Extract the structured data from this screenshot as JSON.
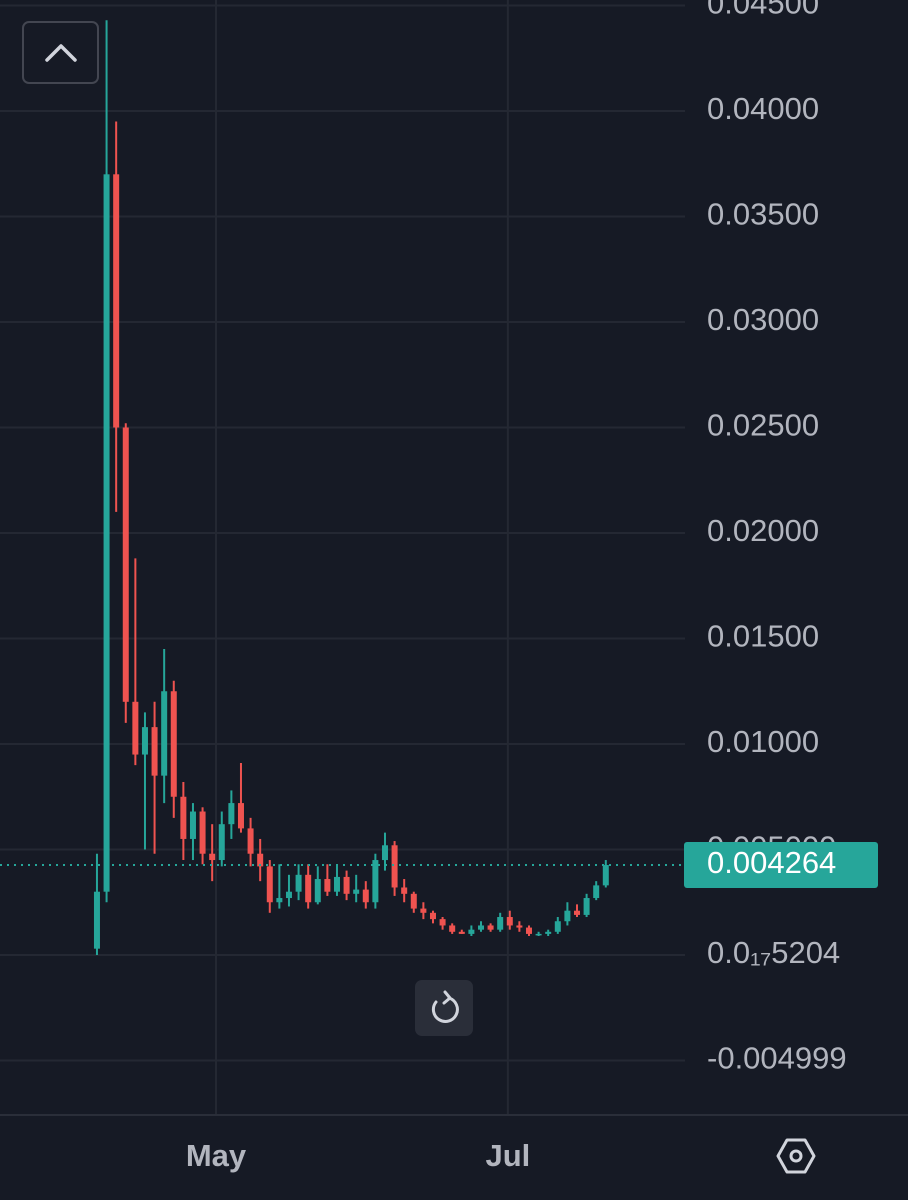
{
  "chart_data": {
    "type": "candlestick",
    "up_color": "#26a69a",
    "down_color": "#ef5350",
    "open": [
      0.0003,
      0.003,
      0.037,
      0.025,
      0.012,
      0.0095,
      0.0108,
      0.0085,
      0.0125,
      0.0075,
      0.0055,
      0.0068,
      0.0048,
      0.0045,
      0.0062,
      0.0072,
      0.006,
      0.0048,
      0.0042,
      0.0025,
      0.0027,
      0.003,
      0.0038,
      0.0025,
      0.0036,
      0.003,
      0.0037,
      0.0029,
      0.0031,
      0.0025,
      0.0045,
      0.0052,
      0.0032,
      0.0029,
      0.0022,
      0.002,
      0.0017,
      0.0014,
      0.0011,
      0.001,
      0.0012,
      0.0014,
      0.0012,
      0.0018,
      0.0014,
      0.0013,
      0.001,
      0.001,
      0.0011,
      0.0016,
      0.0021,
      0.0019,
      0.0027,
      0.0033
    ],
    "high": [
      0.0048,
      0.0443,
      0.0395,
      0.0252,
      0.0188,
      0.0115,
      0.012,
      0.0145,
      0.013,
      0.0082,
      0.0072,
      0.007,
      0.0062,
      0.0068,
      0.0078,
      0.0091,
      0.0065,
      0.0055,
      0.0045,
      0.0043,
      0.0038,
      0.0043,
      0.0043,
      0.0042,
      0.0043,
      0.0043,
      0.004,
      0.0038,
      0.0035,
      0.0048,
      0.0058,
      0.0054,
      0.0036,
      0.003,
      0.0025,
      0.0021,
      0.0018,
      0.0015,
      0.0012,
      0.0014,
      0.0016,
      0.0015,
      0.002,
      0.0021,
      0.0016,
      0.0014,
      0.0011,
      0.0012,
      0.0018,
      0.0025,
      0.0024,
      0.0029,
      0.0035,
      0.0045
    ],
    "low": [
      0,
      0.0025,
      0.021,
      0.011,
      0.009,
      0.005,
      0.0048,
      0.0072,
      0.0065,
      0.0045,
      0.0045,
      0.0043,
      0.0035,
      0.0042,
      0.0055,
      0.0058,
      0.0042,
      0.0035,
      0.002,
      0.0022,
      0.0023,
      0.0026,
      0.0022,
      0.0024,
      0.0028,
      0.0028,
      0.0026,
      0.0025,
      0.0022,
      0.0022,
      0.004,
      0.0028,
      0.0025,
      0.002,
      0.0017,
      0.0015,
      0.0012,
      0.001,
      0.001,
      0.0009,
      0.0011,
      0.0011,
      0.0011,
      0.0012,
      0.0011,
      0.0009,
      0.0009,
      0.0009,
      0.001,
      0.0014,
      0.0018,
      0.0018,
      0.0026,
      0.0032
    ],
    "close": [
      0.003,
      0.037,
      0.025,
      0.012,
      0.0095,
      0.0108,
      0.0085,
      0.0125,
      0.0075,
      0.0055,
      0.0068,
      0.0048,
      0.0045,
      0.0062,
      0.0072,
      0.006,
      0.0048,
      0.0042,
      0.0025,
      0.0027,
      0.003,
      0.0038,
      0.0025,
      0.0036,
      0.003,
      0.0037,
      0.0029,
      0.0031,
      0.0025,
      0.0045,
      0.0052,
      0.0032,
      0.0029,
      0.0022,
      0.002,
      0.0017,
      0.0014,
      0.0011,
      0.001,
      0.0012,
      0.0014,
      0.0012,
      0.0018,
      0.0014,
      0.0013,
      0.001,
      0.001,
      0.0011,
      0.0016,
      0.0021,
      0.0019,
      0.0027,
      0.0033,
      0.004264
    ],
    "last_price": 0.004264,
    "xlim": [
      -10.1,
      61.25
    ],
    "xticks": [
      {
        "value": 12.4,
        "label": "May"
      },
      {
        "value": 42.8,
        "label": "Jul"
      }
    ],
    "ylim": [
      -0.007583,
      0.045261
    ],
    "yticks": [
      {
        "value": 0.045,
        "label": "0.04500"
      },
      {
        "value": 0.04,
        "label": "0.04000"
      },
      {
        "value": 0.035,
        "label": "0.03500"
      },
      {
        "value": 0.03,
        "label": "0.03000"
      },
      {
        "value": 0.025,
        "label": "0.02500"
      },
      {
        "value": 0.02,
        "label": "0.02000"
      },
      {
        "value": 0.015,
        "label": "0.01500"
      },
      {
        "value": 0.01,
        "label": "0.01000"
      },
      {
        "value": 0.005,
        "label": "0.005000"
      },
      {
        "value": 5.204e-18,
        "label": "0.0₁₇5204"
      },
      -0.004999
    ],
    "grid": true
  }
}
